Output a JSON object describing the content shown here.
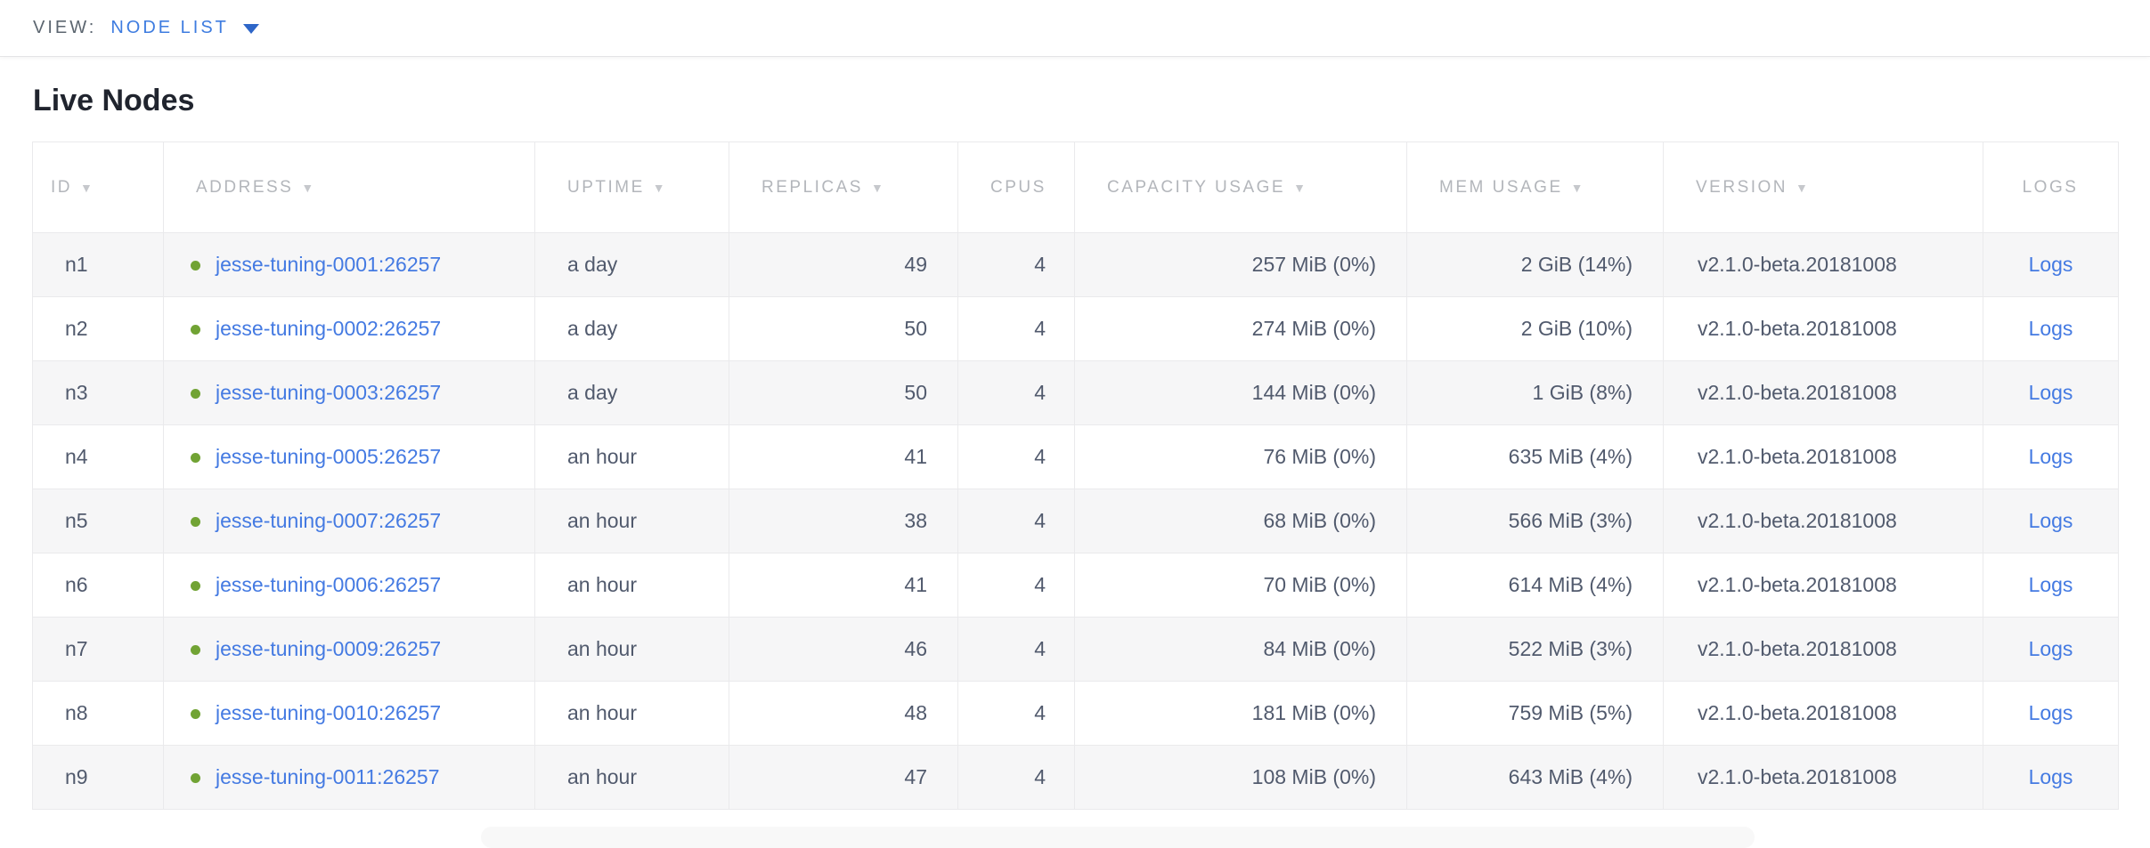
{
  "view_bar": {
    "label": "VIEW:",
    "selected": "NODE LIST"
  },
  "page": {
    "title": "Live Nodes"
  },
  "table": {
    "columns": [
      {
        "key": "id",
        "label": "ID",
        "sortable": true
      },
      {
        "key": "address",
        "label": "ADDRESS",
        "sortable": true
      },
      {
        "key": "uptime",
        "label": "UPTIME",
        "sortable": true
      },
      {
        "key": "replicas",
        "label": "REPLICAS",
        "sortable": true
      },
      {
        "key": "cpus",
        "label": "CPUS",
        "sortable": false
      },
      {
        "key": "capacity",
        "label": "CAPACITY USAGE",
        "sortable": true
      },
      {
        "key": "mem",
        "label": "MEM USAGE",
        "sortable": true
      },
      {
        "key": "version",
        "label": "VERSION",
        "sortable": true
      },
      {
        "key": "logs",
        "label": "LOGS",
        "sortable": false
      }
    ],
    "sort_arrow": "▼",
    "rows": [
      {
        "id": "n1",
        "address": "jesse-tuning-0001:26257",
        "uptime": "a day",
        "replicas": "49",
        "cpus": "4",
        "capacity": "257 MiB (0%)",
        "mem": "2 GiB (14%)",
        "version": "v2.1.0-beta.20181008",
        "logs": "Logs"
      },
      {
        "id": "n2",
        "address": "jesse-tuning-0002:26257",
        "uptime": "a day",
        "replicas": "50",
        "cpus": "4",
        "capacity": "274 MiB (0%)",
        "mem": "2 GiB (10%)",
        "version": "v2.1.0-beta.20181008",
        "logs": "Logs"
      },
      {
        "id": "n3",
        "address": "jesse-tuning-0003:26257",
        "uptime": "a day",
        "replicas": "50",
        "cpus": "4",
        "capacity": "144 MiB (0%)",
        "mem": "1 GiB (8%)",
        "version": "v2.1.0-beta.20181008",
        "logs": "Logs"
      },
      {
        "id": "n4",
        "address": "jesse-tuning-0005:26257",
        "uptime": "an hour",
        "replicas": "41",
        "cpus": "4",
        "capacity": "76 MiB (0%)",
        "mem": "635 MiB (4%)",
        "version": "v2.1.0-beta.20181008",
        "logs": "Logs"
      },
      {
        "id": "n5",
        "address": "jesse-tuning-0007:26257",
        "uptime": "an hour",
        "replicas": "38",
        "cpus": "4",
        "capacity": "68 MiB (0%)",
        "mem": "566 MiB (3%)",
        "version": "v2.1.0-beta.20181008",
        "logs": "Logs"
      },
      {
        "id": "n6",
        "address": "jesse-tuning-0006:26257",
        "uptime": "an hour",
        "replicas": "41",
        "cpus": "4",
        "capacity": "70 MiB (0%)",
        "mem": "614 MiB (4%)",
        "version": "v2.1.0-beta.20181008",
        "logs": "Logs"
      },
      {
        "id": "n7",
        "address": "jesse-tuning-0009:26257",
        "uptime": "an hour",
        "replicas": "46",
        "cpus": "4",
        "capacity": "84 MiB (0%)",
        "mem": "522 MiB (3%)",
        "version": "v2.1.0-beta.20181008",
        "logs": "Logs"
      },
      {
        "id": "n8",
        "address": "jesse-tuning-0010:26257",
        "uptime": "an hour",
        "replicas": "48",
        "cpus": "4",
        "capacity": "181 MiB (0%)",
        "mem": "759 MiB (5%)",
        "version": "v2.1.0-beta.20181008",
        "logs": "Logs"
      },
      {
        "id": "n9",
        "address": "jesse-tuning-0011:26257",
        "uptime": "an hour",
        "replicas": "47",
        "cpus": "4",
        "capacity": "108 MiB (0%)",
        "mem": "643 MiB (4%)",
        "version": "v2.1.0-beta.20181008",
        "logs": "Logs"
      }
    ]
  },
  "colors": {
    "link_blue": "#447ae2",
    "view_blue": "#3e7ce0",
    "healthy_green": "#71a334",
    "header_gray": "#b3b6bb",
    "cell_text": "#515a6d",
    "row_alt_bg": "#f6f6f7"
  },
  "icons": {
    "node_status": "green-dot",
    "view_dropdown": "chevron-down",
    "sort": "triangle-down"
  }
}
